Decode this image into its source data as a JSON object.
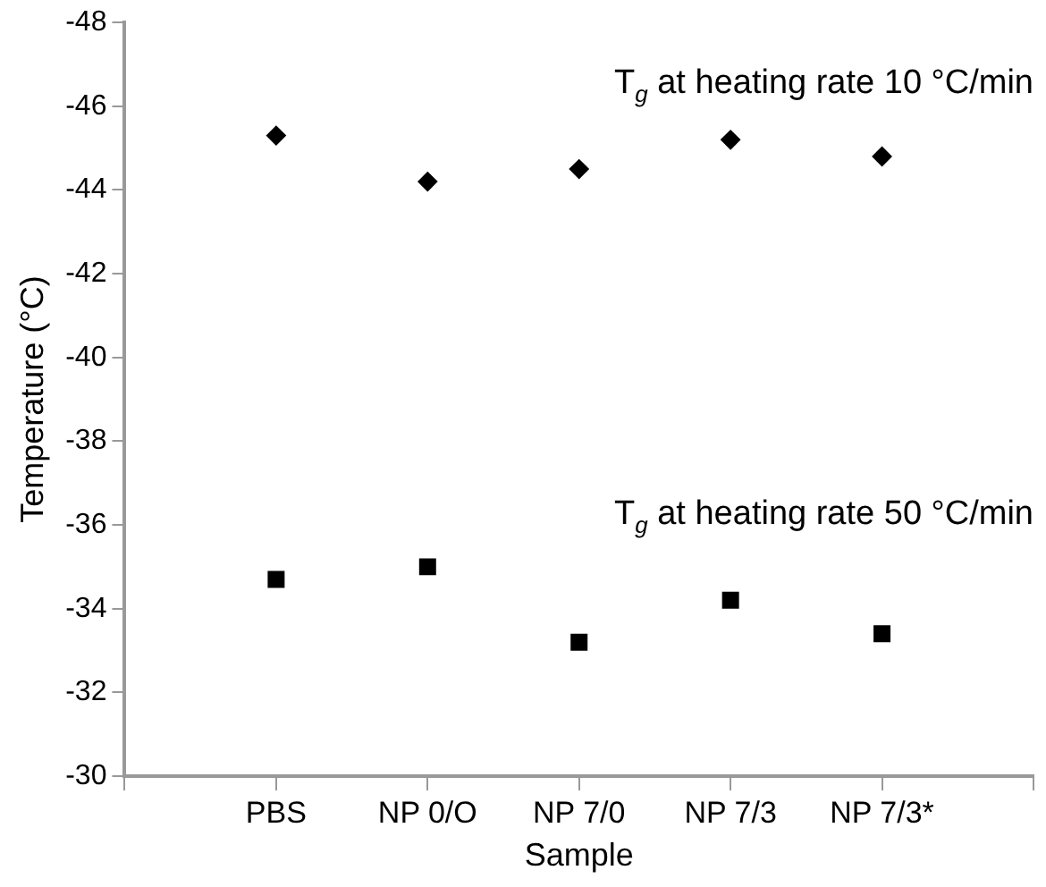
{
  "chart_data": {
    "type": "scatter",
    "xlabel": "Sample",
    "ylabel": "Temperature (°C)",
    "categories": [
      null,
      "PBS",
      "NP 0/O",
      "NP 7/0",
      "NP 7/3",
      "NP 7/3*",
      null
    ],
    "ylim": [
      -30,
      -48
    ],
    "yticks": [
      -30,
      -32,
      -34,
      -36,
      -38,
      -40,
      -42,
      -44,
      -46,
      -48
    ],
    "grid": false,
    "legend": false,
    "series": [
      {
        "name": "T$_{g}$ at heating rate 10 °C/min",
        "color": "#000000",
        "marker": "diamond",
        "values": [
          null,
          -45.3,
          -44.2,
          -44.5,
          -45.2,
          -44.8,
          null
        ]
      },
      {
        "name": "T$_{g}$ at heating rate 50 °C/min",
        "color": "#000000",
        "marker": "square",
        "values": [
          null,
          -34.7,
          -35.0,
          -33.2,
          -34.2,
          -33.4,
          null
        ]
      }
    ]
  }
}
